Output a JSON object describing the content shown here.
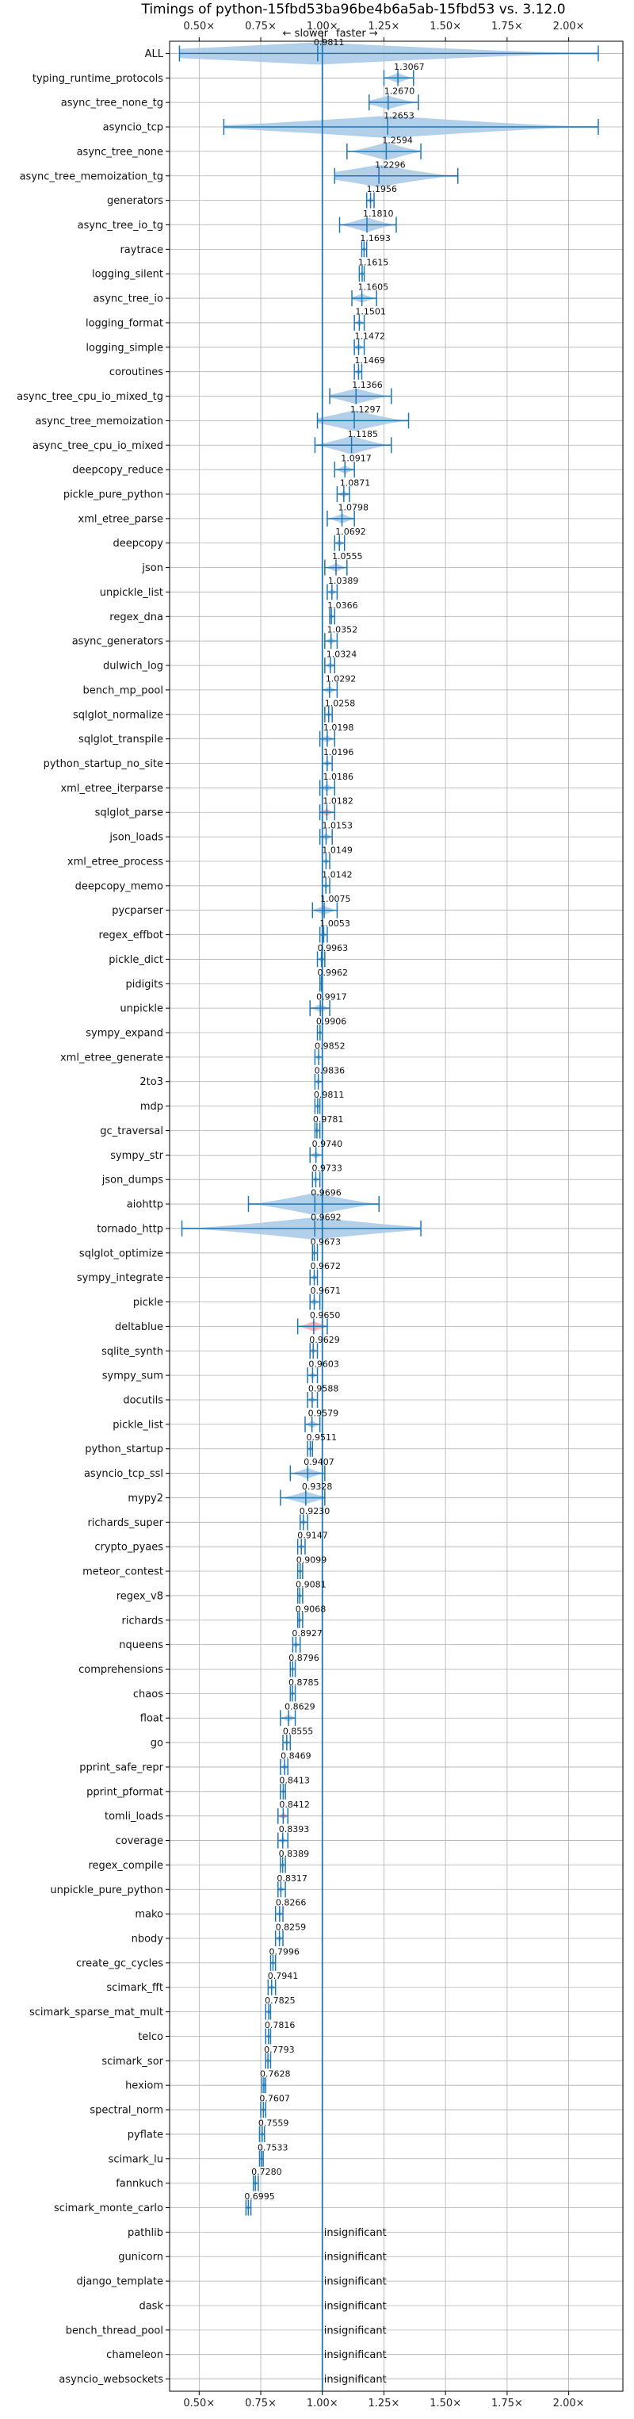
{
  "chart_data": {
    "type": "violin",
    "title": "Timings of python-15fbd53ba96be4b6a5ab-15fbd53 vs. 3.12.0",
    "direction_labels": {
      "slower": "← slower",
      "faster": "faster →"
    },
    "xlim": [
      0.38,
      2.22
    ],
    "reference_line": 1.0,
    "x_ticks": [
      {
        "value": 0.5,
        "label": "0.50×"
      },
      {
        "value": 0.75,
        "label": "0.75×"
      },
      {
        "value": 1.0,
        "label": "1.00×"
      },
      {
        "value": 1.25,
        "label": "1.25×"
      },
      {
        "value": 1.5,
        "label": "1.50×"
      },
      {
        "value": 1.75,
        "label": "1.75×"
      },
      {
        "value": 2.0,
        "label": "2.00×"
      }
    ],
    "insignificant_label": "insignificant",
    "benchmarks": [
      {
        "name": "ALL",
        "value": 0.9811,
        "label": "0.9811",
        "min": 0.42,
        "max": 2.12
      },
      {
        "name": "typing_runtime_protocols",
        "value": 1.3067,
        "label": "1.3067",
        "min": 1.25,
        "max": 1.37
      },
      {
        "name": "async_tree_none_tg",
        "value": 1.267,
        "label": "1.2670",
        "min": 1.19,
        "max": 1.39
      },
      {
        "name": "asyncio_tcp",
        "value": 1.2653,
        "label": "1.2653",
        "min": 0.6,
        "max": 2.12
      },
      {
        "name": "async_tree_none",
        "value": 1.2594,
        "label": "1.2594",
        "min": 1.1,
        "max": 1.4
      },
      {
        "name": "async_tree_memoization_tg",
        "value": 1.2296,
        "label": "1.2296",
        "min": 1.05,
        "max": 1.55
      },
      {
        "name": "generators",
        "value": 1.1956,
        "label": "1.1956",
        "min": 1.18,
        "max": 1.21
      },
      {
        "name": "async_tree_io_tg",
        "value": 1.181,
        "label": "1.1810",
        "min": 1.07,
        "max": 1.3
      },
      {
        "name": "raytrace",
        "value": 1.1693,
        "label": "1.1693",
        "min": 1.16,
        "max": 1.18
      },
      {
        "name": "logging_silent",
        "value": 1.1615,
        "label": "1.1615",
        "min": 1.15,
        "max": 1.17
      },
      {
        "name": "async_tree_io",
        "value": 1.1605,
        "label": "1.1605",
        "min": 1.12,
        "max": 1.22
      },
      {
        "name": "logging_format",
        "value": 1.1501,
        "label": "1.1501",
        "min": 1.13,
        "max": 1.17
      },
      {
        "name": "logging_simple",
        "value": 1.1472,
        "label": "1.1472",
        "min": 1.13,
        "max": 1.17
      },
      {
        "name": "coroutines",
        "value": 1.1469,
        "label": "1.1469",
        "min": 1.13,
        "max": 1.16
      },
      {
        "name": "async_tree_cpu_io_mixed_tg",
        "value": 1.1366,
        "label": "1.1366",
        "min": 1.03,
        "max": 1.28
      },
      {
        "name": "async_tree_memoization",
        "value": 1.1297,
        "label": "1.1297",
        "min": 0.98,
        "max": 1.35
      },
      {
        "name": "async_tree_cpu_io_mixed",
        "value": 1.1185,
        "label": "1.1185",
        "min": 0.97,
        "max": 1.28
      },
      {
        "name": "deepcopy_reduce",
        "value": 1.0917,
        "label": "1.0917",
        "min": 1.05,
        "max": 1.13
      },
      {
        "name": "pickle_pure_python",
        "value": 1.0871,
        "label": "1.0871",
        "min": 1.06,
        "max": 1.11
      },
      {
        "name": "xml_etree_parse",
        "value": 1.0798,
        "label": "1.0798",
        "min": 1.02,
        "max": 1.13
      },
      {
        "name": "deepcopy",
        "value": 1.0692,
        "label": "1.0692",
        "min": 1.05,
        "max": 1.09
      },
      {
        "name": "json",
        "value": 1.0555,
        "label": "1.0555",
        "min": 1.01,
        "max": 1.1
      },
      {
        "name": "unpickle_list",
        "value": 1.0389,
        "label": "1.0389",
        "min": 1.02,
        "max": 1.06
      },
      {
        "name": "regex_dna",
        "value": 1.0366,
        "label": "1.0366",
        "min": 1.03,
        "max": 1.05
      },
      {
        "name": "async_generators",
        "value": 1.0352,
        "label": "1.0352",
        "min": 1.01,
        "max": 1.06
      },
      {
        "name": "dulwich_log",
        "value": 1.0324,
        "label": "1.0324",
        "min": 1.01,
        "max": 1.05
      },
      {
        "name": "bench_mp_pool",
        "value": 1.0292,
        "label": "1.0292",
        "min": 1.0,
        "max": 1.06
      },
      {
        "name": "sqlglot_normalize",
        "value": 1.0258,
        "label": "1.0258",
        "min": 1.01,
        "max": 1.04
      },
      {
        "name": "sqlglot_transpile",
        "value": 1.0198,
        "label": "1.0198",
        "min": 0.99,
        "max": 1.05
      },
      {
        "name": "python_startup_no_site",
        "value": 1.0196,
        "label": "1.0196",
        "min": 1.0,
        "max": 1.04
      },
      {
        "name": "xml_etree_iterparse",
        "value": 1.0186,
        "label": "1.0186",
        "min": 0.99,
        "max": 1.05
      },
      {
        "name": "sqlglot_parse",
        "value": 1.0182,
        "label": "1.0182",
        "min": 0.99,
        "max": 1.05
      },
      {
        "name": "json_loads",
        "value": 1.0153,
        "label": "1.0153",
        "min": 0.99,
        "max": 1.04
      },
      {
        "name": "xml_etree_process",
        "value": 1.0149,
        "label": "1.0149",
        "min": 1.0,
        "max": 1.03
      },
      {
        "name": "deepcopy_memo",
        "value": 1.0142,
        "label": "1.0142",
        "min": 1.0,
        "max": 1.03
      },
      {
        "name": "pycparser",
        "value": 1.0075,
        "label": "1.0075",
        "min": 0.96,
        "max": 1.06
      },
      {
        "name": "regex_effbot",
        "value": 1.0053,
        "label": "1.0053",
        "min": 0.99,
        "max": 1.02
      },
      {
        "name": "pickle_dict",
        "value": 0.9963,
        "label": "0.9963",
        "min": 0.98,
        "max": 1.01
      },
      {
        "name": "pidigits",
        "value": 0.9962,
        "label": "0.9962",
        "min": 0.99,
        "max": 1.0
      },
      {
        "name": "unpickle",
        "value": 0.9917,
        "label": "0.9917",
        "min": 0.95,
        "max": 1.03
      },
      {
        "name": "sympy_expand",
        "value": 0.9906,
        "label": "0.9906",
        "min": 0.98,
        "max": 1.0
      },
      {
        "name": "xml_etree_generate",
        "value": 0.9852,
        "label": "0.9852",
        "min": 0.97,
        "max": 1.0
      },
      {
        "name": "2to3",
        "value": 0.9836,
        "label": "0.9836",
        "min": 0.97,
        "max": 1.0
      },
      {
        "name": "mdp",
        "value": 0.9811,
        "label": "0.9811",
        "min": 0.97,
        "max": 0.99
      },
      {
        "name": "gc_traversal",
        "value": 0.9781,
        "label": "0.9781",
        "min": 0.97,
        "max": 0.99
      },
      {
        "name": "sympy_str",
        "value": 0.974,
        "label": "0.9740",
        "min": 0.95,
        "max": 1.0
      },
      {
        "name": "json_dumps",
        "value": 0.9733,
        "label": "0.9733",
        "min": 0.96,
        "max": 0.99
      },
      {
        "name": "aiohttp",
        "value": 0.9696,
        "label": "0.9696",
        "min": 0.7,
        "max": 1.23
      },
      {
        "name": "tornado_http",
        "value": 0.9692,
        "label": "0.9692",
        "min": 0.43,
        "max": 1.4
      },
      {
        "name": "sqlglot_optimize",
        "value": 0.9673,
        "label": "0.9673",
        "min": 0.96,
        "max": 0.98
      },
      {
        "name": "sympy_integrate",
        "value": 0.9672,
        "label": "0.9672",
        "min": 0.95,
        "max": 0.98
      },
      {
        "name": "pickle",
        "value": 0.9671,
        "label": "0.9671",
        "min": 0.95,
        "max": 0.99
      },
      {
        "name": "deltablue",
        "value": 0.965,
        "label": "0.9650",
        "min": 0.9,
        "max": 1.02
      },
      {
        "name": "sqlite_synth",
        "value": 0.9629,
        "label": "0.9629",
        "min": 0.95,
        "max": 0.98
      },
      {
        "name": "sympy_sum",
        "value": 0.9603,
        "label": "0.9603",
        "min": 0.94,
        "max": 0.98
      },
      {
        "name": "docutils",
        "value": 0.9588,
        "label": "0.9588",
        "min": 0.94,
        "max": 0.98
      },
      {
        "name": "pickle_list",
        "value": 0.9579,
        "label": "0.9579",
        "min": 0.93,
        "max": 0.99
      },
      {
        "name": "python_startup",
        "value": 0.9511,
        "label": "0.9511",
        "min": 0.94,
        "max": 0.96
      },
      {
        "name": "asyncio_tcp_ssl",
        "value": 0.9407,
        "label": "0.9407",
        "min": 0.87,
        "max": 1.01
      },
      {
        "name": "mypy2",
        "value": 0.9328,
        "label": "0.9328",
        "min": 0.83,
        "max": 1.01
      },
      {
        "name": "richards_super",
        "value": 0.923,
        "label": "0.9230",
        "min": 0.91,
        "max": 0.94
      },
      {
        "name": "crypto_pyaes",
        "value": 0.9147,
        "label": "0.9147",
        "min": 0.9,
        "max": 0.93
      },
      {
        "name": "meteor_contest",
        "value": 0.9099,
        "label": "0.9099",
        "min": 0.9,
        "max": 0.92
      },
      {
        "name": "regex_v8",
        "value": 0.9081,
        "label": "0.9081",
        "min": 0.9,
        "max": 0.92
      },
      {
        "name": "richards",
        "value": 0.9068,
        "label": "0.9068",
        "min": 0.9,
        "max": 0.92
      },
      {
        "name": "nqueens",
        "value": 0.8927,
        "label": "0.8927",
        "min": 0.88,
        "max": 0.91
      },
      {
        "name": "comprehensions",
        "value": 0.8796,
        "label": "0.8796",
        "min": 0.87,
        "max": 0.89
      },
      {
        "name": "chaos",
        "value": 0.8785,
        "label": "0.8785",
        "min": 0.87,
        "max": 0.89
      },
      {
        "name": "float",
        "value": 0.8629,
        "label": "0.8629",
        "min": 0.83,
        "max": 0.89
      },
      {
        "name": "go",
        "value": 0.8555,
        "label": "0.8555",
        "min": 0.84,
        "max": 0.87
      },
      {
        "name": "pprint_safe_repr",
        "value": 0.8469,
        "label": "0.8469",
        "min": 0.83,
        "max": 0.86
      },
      {
        "name": "pprint_pformat",
        "value": 0.8413,
        "label": "0.8413",
        "min": 0.83,
        "max": 0.85
      },
      {
        "name": "tomli_loads",
        "value": 0.8412,
        "label": "0.8412",
        "min": 0.82,
        "max": 0.86
      },
      {
        "name": "coverage",
        "value": 0.8393,
        "label": "0.8393",
        "min": 0.82,
        "max": 0.86
      },
      {
        "name": "regex_compile",
        "value": 0.8389,
        "label": "0.8389",
        "min": 0.83,
        "max": 0.85
      },
      {
        "name": "unpickle_pure_python",
        "value": 0.8317,
        "label": "0.8317",
        "min": 0.82,
        "max": 0.85
      },
      {
        "name": "mako",
        "value": 0.8266,
        "label": "0.8266",
        "min": 0.81,
        "max": 0.84
      },
      {
        "name": "nbody",
        "value": 0.8259,
        "label": "0.8259",
        "min": 0.81,
        "max": 0.84
      },
      {
        "name": "create_gc_cycles",
        "value": 0.7996,
        "label": "0.7996",
        "min": 0.79,
        "max": 0.81
      },
      {
        "name": "scimark_fft",
        "value": 0.7941,
        "label": "0.7941",
        "min": 0.78,
        "max": 0.81
      },
      {
        "name": "scimark_sparse_mat_mult",
        "value": 0.7825,
        "label": "0.7825",
        "min": 0.77,
        "max": 0.79
      },
      {
        "name": "telco",
        "value": 0.7816,
        "label": "0.7816",
        "min": 0.77,
        "max": 0.79
      },
      {
        "name": "scimark_sor",
        "value": 0.7793,
        "label": "0.7793",
        "min": 0.77,
        "max": 0.79
      },
      {
        "name": "hexiom",
        "value": 0.7628,
        "label": "0.7628",
        "min": 0.755,
        "max": 0.77
      },
      {
        "name": "spectral_norm",
        "value": 0.7607,
        "label": "0.7607",
        "min": 0.75,
        "max": 0.77
      },
      {
        "name": "pyflate",
        "value": 0.7559,
        "label": "0.7559",
        "min": 0.745,
        "max": 0.765
      },
      {
        "name": "scimark_lu",
        "value": 0.7533,
        "label": "0.7533",
        "min": 0.745,
        "max": 0.76
      },
      {
        "name": "fannkuch",
        "value": 0.728,
        "label": "0.7280",
        "min": 0.72,
        "max": 0.74
      },
      {
        "name": "scimark_monte_carlo",
        "value": 0.6995,
        "label": "0.6995",
        "min": 0.69,
        "max": 0.71
      },
      {
        "name": "pathlib",
        "insignificant": true
      },
      {
        "name": "gunicorn",
        "insignificant": true
      },
      {
        "name": "django_template",
        "insignificant": true
      },
      {
        "name": "dask",
        "insignificant": true
      },
      {
        "name": "bench_thread_pool",
        "insignificant": true
      },
      {
        "name": "chameleon",
        "insignificant": true
      },
      {
        "name": "asyncio_websockets",
        "insignificant": true
      }
    ],
    "highlighted": [
      "sqlglot_parse",
      "deltablue",
      "tomli_loads"
    ],
    "colors": {
      "violin": "#a6c8e6",
      "highlight": "#f4a4ad",
      "line": "#1f77b4",
      "grid": "#b0b0b0",
      "axis": "#000000"
    }
  }
}
